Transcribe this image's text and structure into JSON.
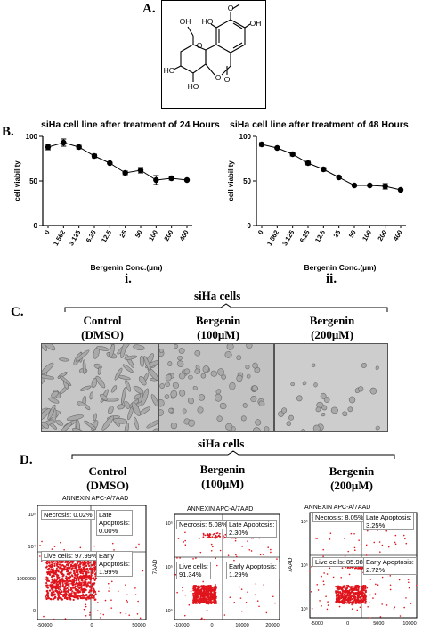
{
  "panels": {
    "a": {
      "letter": "A."
    },
    "b": {
      "letter": "B."
    },
    "c": {
      "letter": "C."
    },
    "d": {
      "letter": "D."
    }
  },
  "structure": {
    "labels": [
      "O",
      "OH",
      "HO",
      "OH",
      "HO",
      "HO",
      "O",
      "O",
      "O",
      "O",
      "OH"
    ]
  },
  "chart_data": [
    {
      "type": "line",
      "title": "siHa cell line after treatment of 24 Hours",
      "xlabel": "Bergenin Conc.(µm)",
      "ylabel": "cell viability",
      "caption": "i.",
      "categories": [
        "0",
        "1.562",
        "3.125",
        "6.25",
        "12.5",
        "25",
        "50",
        "100",
        "200",
        "400"
      ],
      "values": [
        88,
        93,
        88,
        78,
        70,
        59,
        62,
        51,
        53,
        51
      ],
      "errors": [
        3,
        4,
        2,
        2,
        1,
        2,
        3,
        5,
        2,
        1
      ],
      "yticks": [
        0,
        50,
        100
      ],
      "ylim": [
        0,
        100
      ]
    },
    {
      "type": "line",
      "title": "siHa cell line after treatment of 48 Hours",
      "xlabel": "Bergenin Conc.(µm)",
      "ylabel": "cell viability",
      "caption": "ii.",
      "categories": [
        "0",
        "1.562",
        "3.125",
        "6.25",
        "12.5",
        "25",
        "50",
        "100",
        "200",
        "400"
      ],
      "values": [
        91,
        87,
        80,
        70,
        63,
        54,
        45,
        45,
        44,
        40
      ],
      "errors": [
        2,
        1,
        2,
        2,
        2,
        1,
        1,
        1,
        3,
        1
      ],
      "yticks": [
        0,
        50,
        100
      ],
      "ylim": [
        0,
        100
      ]
    }
  ],
  "micro": {
    "group_label": "siHa cells",
    "conditions": [
      {
        "line1": "Control",
        "line2": "(DMSO)"
      },
      {
        "line1": "Bergenin",
        "line2": "(100μM)"
      },
      {
        "line1": "Bergenin",
        "line2": "(200μM)"
      }
    ]
  },
  "flow": {
    "group_label": "siHa cells",
    "conditions": [
      {
        "line1": "Control",
        "line2": "(DMSO)"
      },
      {
        "line1": "Bergenin",
        "line2": "(100μM)"
      },
      {
        "line1": "Bergenin",
        "line2": "(200μM)"
      }
    ],
    "plots": [
      {
        "title": "ANNEXIN APC-A/7AAD",
        "necrosis": "Necrosis: 0.02%",
        "late": "Late\nApoptosis:\n0.00%",
        "live": "Live cells: 97.99%",
        "early": "Early\nApoptosis:\n1.99%",
        "yticks": [
          "10⁵",
          "10⁴",
          "1000000",
          "0"
        ],
        "xticks": [
          "-50000",
          "0",
          "50000"
        ],
        "ylabel": ""
      },
      {
        "title": "ANNEXIN APC-A/7AAD",
        "necrosis": "Necrosis: 5.08%",
        "late": "Late Apoptosis:\n2.30%",
        "live": "Live cells:\n91.34%",
        "early": "Early Apoptosis:\n1.29%",
        "yticks": [
          "10⁵",
          "10⁵",
          "10⁵"
        ],
        "xticks": [
          "-10000",
          "0",
          "10000",
          "20000"
        ],
        "ylabel": "7AAD"
      },
      {
        "title": "ANNEXIN APC-A/7AAD",
        "necrosis": "Necrosis: 8.05%",
        "late": "Late Apoptosis:\n3.25%",
        "live": "Live cells: 85.98%",
        "early": "Early Apoptosis:\n2.72%",
        "yticks": [
          "10⁵",
          "10⁵",
          "10⁵"
        ],
        "xticks": [
          "-5000",
          "0",
          "5000",
          "10000"
        ],
        "ylabel": "7AAD"
      }
    ]
  }
}
